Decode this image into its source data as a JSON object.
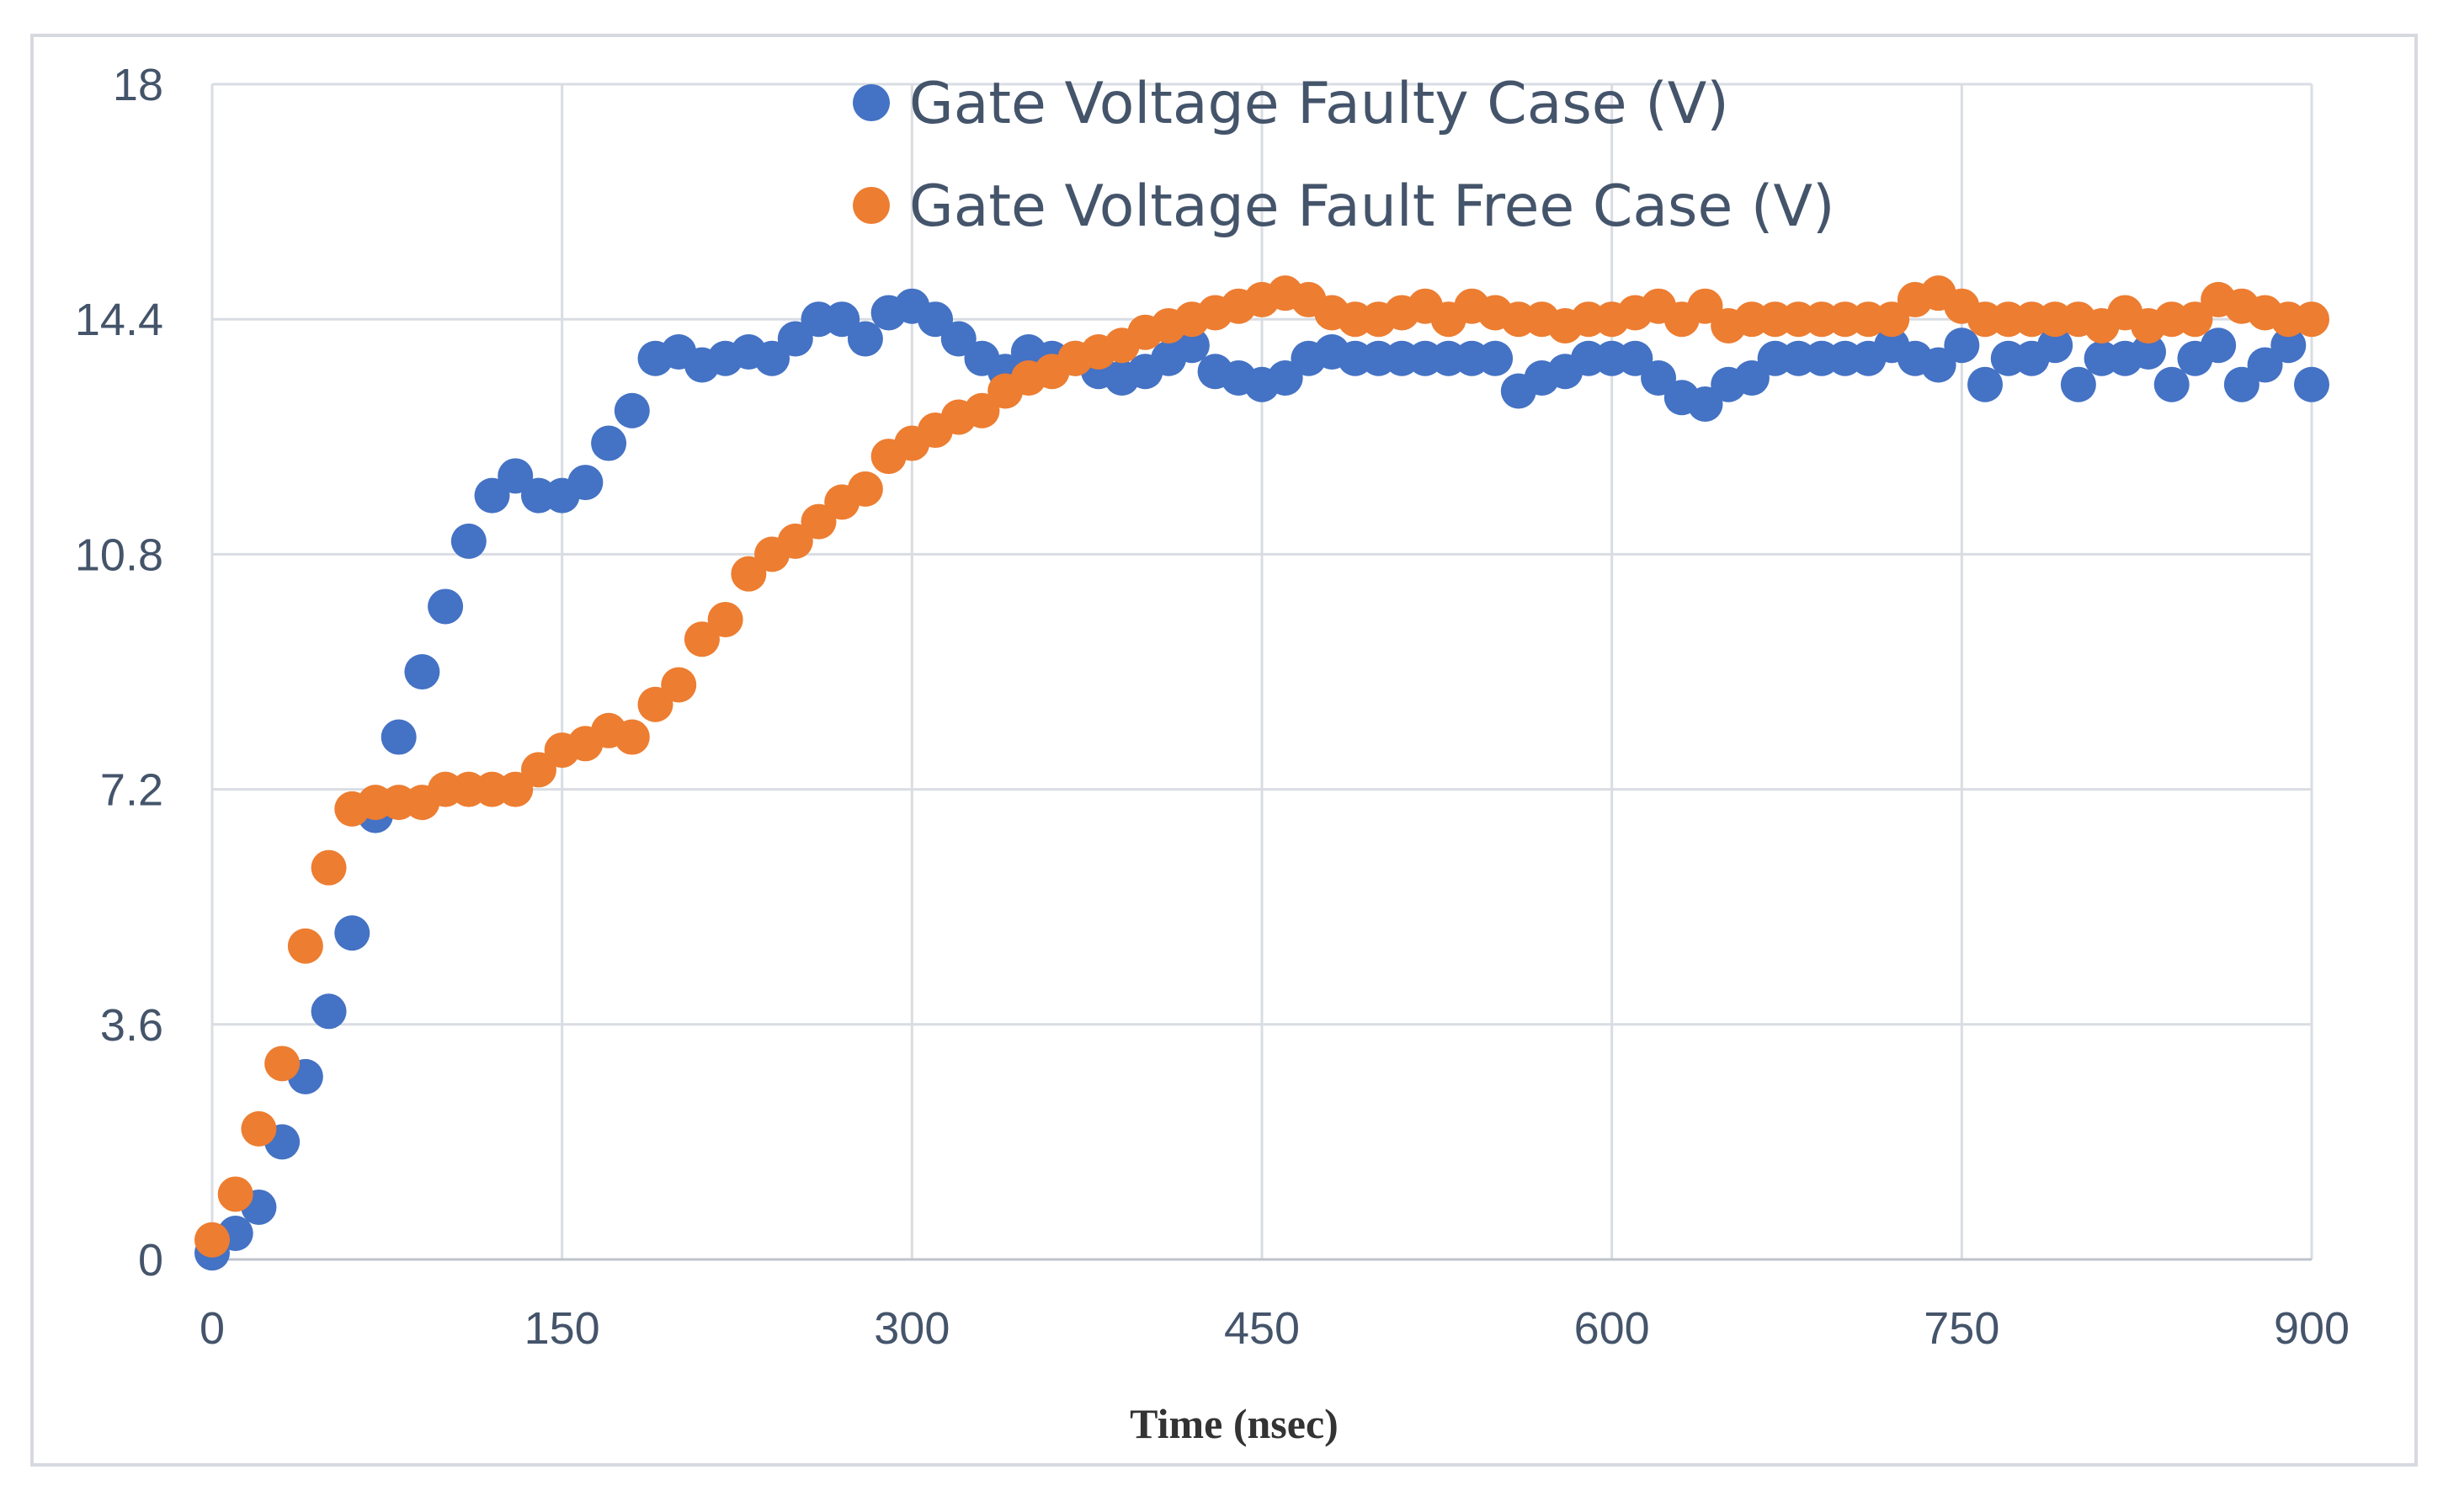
{
  "chart_data": {
    "type": "scatter",
    "title": "",
    "xlabel": "Time (nsec)",
    "ylabel": "",
    "xlim": [
      0,
      900
    ],
    "ylim": [
      0,
      18
    ],
    "x_ticks": [
      "0",
      "150",
      "300",
      "450",
      "600",
      "750",
      "900"
    ],
    "y_ticks": [
      "0",
      "3.6",
      "7.2",
      "10.8",
      "14.4",
      "18"
    ],
    "grid": true,
    "legend_position": "top-center",
    "series": [
      {
        "name": "Gate Voltage Faulty Case (V)",
        "color": "#4472c4",
        "points": [
          [
            0,
            0.1
          ],
          [
            10,
            0.4
          ],
          [
            20,
            0.8
          ],
          [
            30,
            1.8
          ],
          [
            40,
            2.8
          ],
          [
            50,
            3.8
          ],
          [
            60,
            5.0
          ],
          [
            70,
            6.8
          ],
          [
            80,
            8.0
          ],
          [
            90,
            9.0
          ],
          [
            100,
            10.0
          ],
          [
            110,
            11.0
          ],
          [
            120,
            11.7
          ],
          [
            130,
            12.0
          ],
          [
            140,
            11.7
          ],
          [
            150,
            11.7
          ],
          [
            160,
            11.9
          ],
          [
            170,
            12.5
          ],
          [
            180,
            13.0
          ],
          [
            190,
            13.8
          ],
          [
            200,
            13.9
          ],
          [
            210,
            13.7
          ],
          [
            220,
            13.8
          ],
          [
            230,
            13.9
          ],
          [
            240,
            13.8
          ],
          [
            250,
            14.1
          ],
          [
            260,
            14.4
          ],
          [
            270,
            14.4
          ],
          [
            280,
            14.1
          ],
          [
            290,
            14.5
          ],
          [
            300,
            14.6
          ],
          [
            310,
            14.4
          ],
          [
            320,
            14.1
          ],
          [
            330,
            13.8
          ],
          [
            340,
            13.6
          ],
          [
            350,
            13.9
          ],
          [
            360,
            13.8
          ],
          [
            370,
            13.8
          ],
          [
            380,
            13.6
          ],
          [
            390,
            13.5
          ],
          [
            400,
            13.6
          ],
          [
            410,
            13.8
          ],
          [
            420,
            14.0
          ],
          [
            430,
            13.6
          ],
          [
            440,
            13.5
          ],
          [
            450,
            13.4
          ],
          [
            460,
            13.5
          ],
          [
            470,
            13.8
          ],
          [
            480,
            13.9
          ],
          [
            490,
            13.8
          ],
          [
            500,
            13.8
          ],
          [
            510,
            13.8
          ],
          [
            520,
            13.8
          ],
          [
            530,
            13.8
          ],
          [
            540,
            13.8
          ],
          [
            550,
            13.8
          ],
          [
            560,
            13.3
          ],
          [
            570,
            13.5
          ],
          [
            580,
            13.6
          ],
          [
            590,
            13.8
          ],
          [
            600,
            13.8
          ],
          [
            610,
            13.8
          ],
          [
            620,
            13.5
          ],
          [
            630,
            13.2
          ],
          [
            640,
            13.1
          ],
          [
            650,
            13.4
          ],
          [
            660,
            13.5
          ],
          [
            670,
            13.8
          ],
          [
            680,
            13.8
          ],
          [
            690,
            13.8
          ],
          [
            700,
            13.8
          ],
          [
            710,
            13.8
          ],
          [
            720,
            14.0
          ],
          [
            730,
            13.8
          ],
          [
            740,
            13.7
          ],
          [
            750,
            14.0
          ],
          [
            760,
            13.4
          ],
          [
            770,
            13.8
          ],
          [
            780,
            13.8
          ],
          [
            790,
            14.0
          ],
          [
            800,
            13.4
          ],
          [
            810,
            13.8
          ],
          [
            820,
            13.8
          ],
          [
            830,
            13.9
          ],
          [
            840,
            13.4
          ],
          [
            850,
            13.8
          ],
          [
            860,
            14.0
          ],
          [
            870,
            13.4
          ],
          [
            880,
            13.7
          ],
          [
            890,
            14.0
          ],
          [
            900,
            13.4
          ]
        ]
      },
      {
        "name": "Gate Voltage Fault Free Case (V)",
        "color": "#ed7d31",
        "points": [
          [
            0,
            0.3
          ],
          [
            10,
            1.0
          ],
          [
            20,
            2.0
          ],
          [
            30,
            3.0
          ],
          [
            40,
            4.8
          ],
          [
            50,
            6.0
          ],
          [
            60,
            6.9
          ],
          [
            70,
            7.0
          ],
          [
            80,
            7.0
          ],
          [
            90,
            7.0
          ],
          [
            100,
            7.2
          ],
          [
            110,
            7.2
          ],
          [
            120,
            7.2
          ],
          [
            130,
            7.2
          ],
          [
            140,
            7.5
          ],
          [
            150,
            7.8
          ],
          [
            160,
            7.9
          ],
          [
            170,
            8.1
          ],
          [
            180,
            8.0
          ],
          [
            190,
            8.5
          ],
          [
            200,
            8.8
          ],
          [
            210,
            9.5
          ],
          [
            220,
            9.8
          ],
          [
            230,
            10.5
          ],
          [
            240,
            10.8
          ],
          [
            250,
            11.0
          ],
          [
            260,
            11.3
          ],
          [
            270,
            11.6
          ],
          [
            280,
            11.8
          ],
          [
            290,
            12.3
          ],
          [
            300,
            12.5
          ],
          [
            310,
            12.7
          ],
          [
            320,
            12.9
          ],
          [
            330,
            13.0
          ],
          [
            340,
            13.3
          ],
          [
            350,
            13.5
          ],
          [
            360,
            13.6
          ],
          [
            370,
            13.8
          ],
          [
            380,
            13.9
          ],
          [
            390,
            14.0
          ],
          [
            400,
            14.2
          ],
          [
            410,
            14.3
          ],
          [
            420,
            14.4
          ],
          [
            430,
            14.5
          ],
          [
            440,
            14.6
          ],
          [
            450,
            14.7
          ],
          [
            460,
            14.8
          ],
          [
            470,
            14.7
          ],
          [
            480,
            14.5
          ],
          [
            490,
            14.4
          ],
          [
            500,
            14.4
          ],
          [
            510,
            14.5
          ],
          [
            520,
            14.6
          ],
          [
            530,
            14.4
          ],
          [
            540,
            14.6
          ],
          [
            550,
            14.5
          ],
          [
            560,
            14.4
          ],
          [
            570,
            14.4
          ],
          [
            580,
            14.3
          ],
          [
            590,
            14.4
          ],
          [
            600,
            14.4
          ],
          [
            610,
            14.5
          ],
          [
            620,
            14.6
          ],
          [
            630,
            14.4
          ],
          [
            640,
            14.6
          ],
          [
            650,
            14.3
          ],
          [
            660,
            14.4
          ],
          [
            670,
            14.4
          ],
          [
            680,
            14.4
          ],
          [
            690,
            14.4
          ],
          [
            700,
            14.4
          ],
          [
            710,
            14.4
          ],
          [
            720,
            14.4
          ],
          [
            730,
            14.7
          ],
          [
            740,
            14.8
          ],
          [
            750,
            14.6
          ],
          [
            760,
            14.4
          ],
          [
            770,
            14.4
          ],
          [
            780,
            14.4
          ],
          [
            790,
            14.4
          ],
          [
            800,
            14.4
          ],
          [
            810,
            14.3
          ],
          [
            820,
            14.5
          ],
          [
            830,
            14.3
          ],
          [
            840,
            14.4
          ],
          [
            850,
            14.4
          ],
          [
            860,
            14.7
          ],
          [
            870,
            14.6
          ],
          [
            880,
            14.5
          ],
          [
            890,
            14.4
          ],
          [
            900,
            14.4
          ]
        ]
      }
    ]
  }
}
